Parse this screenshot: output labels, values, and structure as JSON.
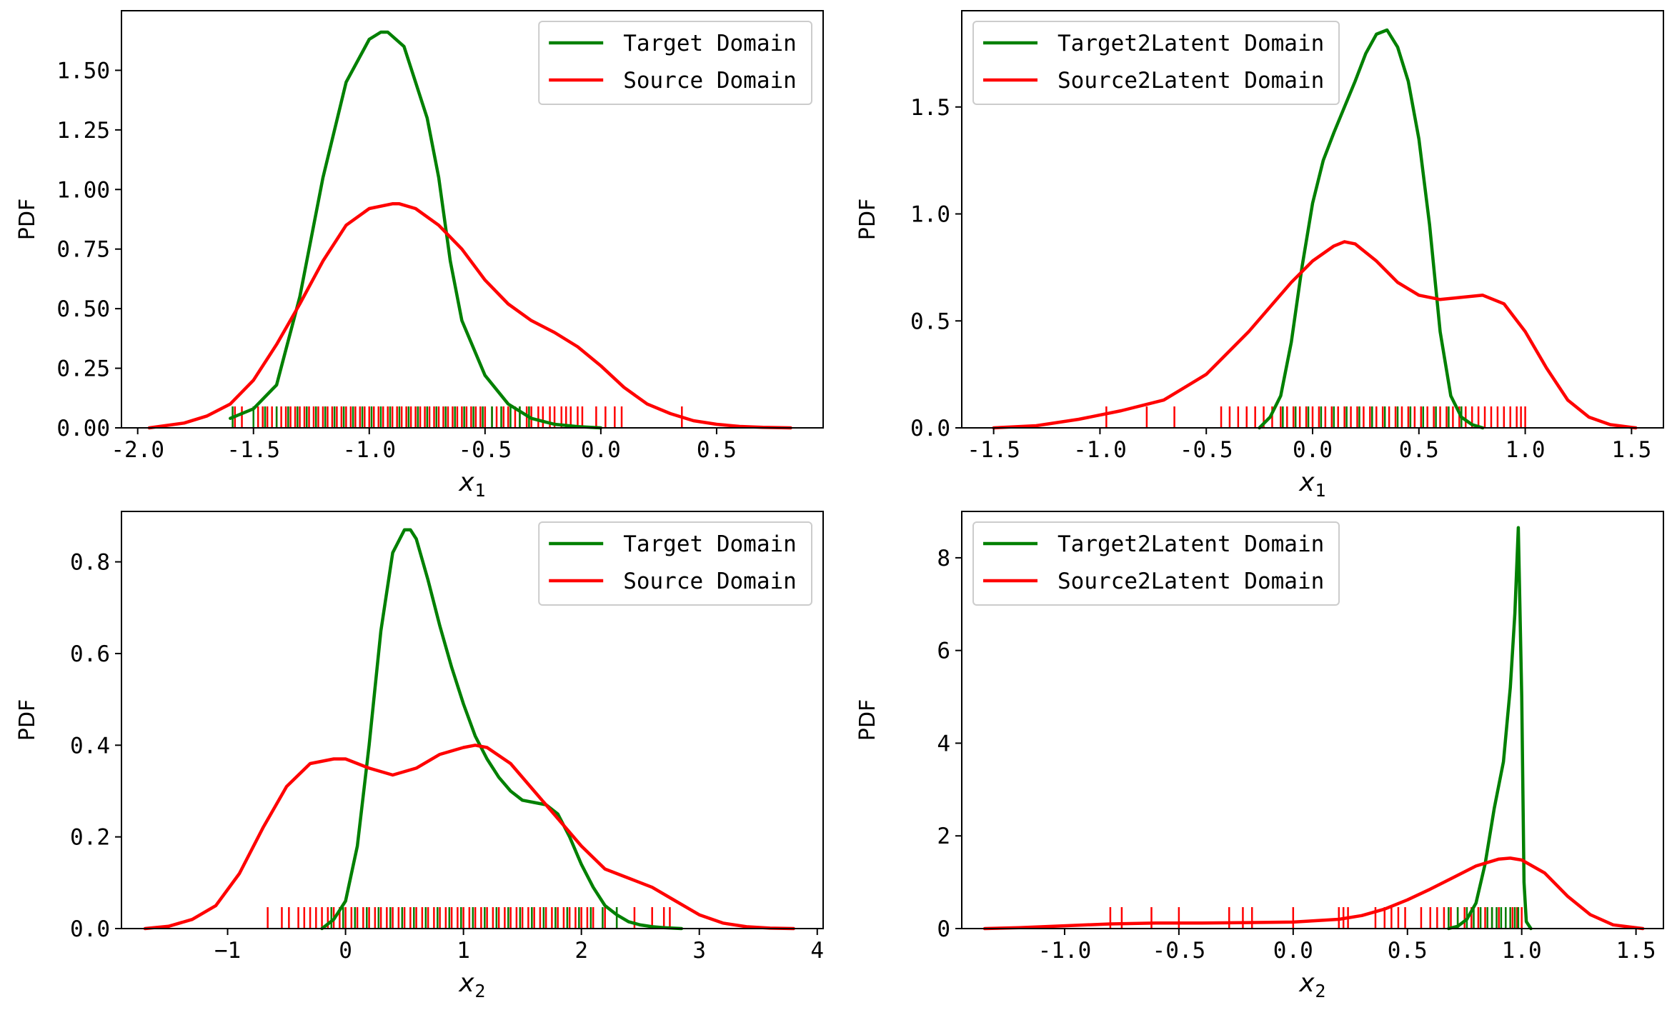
{
  "chart_data": [
    {
      "type": "line",
      "ylabel": "PDF",
      "xlabel": "x1",
      "xlabel_base": "x",
      "xlabel_sub": "1",
      "xlim": [
        -2.07,
        0.96
      ],
      "ylim": [
        0,
        1.75
      ],
      "xticks": [
        -2.0,
        -1.5,
        -1.0,
        -0.5,
        0.0,
        0.5
      ],
      "xtick_labels": [
        "-2.0",
        "-1.5",
        "-1.0",
        "-0.5",
        "0.0",
        "0.5"
      ],
      "yticks": [
        0,
        0.25,
        0.5,
        0.75,
        1.0,
        1.25,
        1.5
      ],
      "ytick_labels": [
        "0.00",
        "0.25",
        "0.50",
        "0.75",
        "1.00",
        "1.25",
        "1.50"
      ],
      "legend": {
        "location": "upper-right"
      },
      "series": [
        {
          "name": "Target Domain",
          "color": "#008000",
          "x": [
            -1.6,
            -1.5,
            -1.4,
            -1.3,
            -1.2,
            -1.1,
            -1.0,
            -0.95,
            -0.92,
            -0.85,
            -0.8,
            -0.75,
            -0.7,
            -0.65,
            -0.6,
            -0.5,
            -0.4,
            -0.3,
            -0.2,
            -0.1,
            0.0
          ],
          "y": [
            0.04,
            0.08,
            0.18,
            0.55,
            1.05,
            1.45,
            1.63,
            1.66,
            1.66,
            1.6,
            1.45,
            1.3,
            1.05,
            0.7,
            0.45,
            0.22,
            0.1,
            0.04,
            0.015,
            0.005,
            0.0
          ]
        },
        {
          "name": "Source Domain",
          "color": "#ff0000",
          "x": [
            -1.95,
            -1.8,
            -1.7,
            -1.6,
            -1.5,
            -1.4,
            -1.3,
            -1.2,
            -1.1,
            -1.0,
            -0.9,
            -0.87,
            -0.8,
            -0.7,
            -0.6,
            -0.5,
            -0.4,
            -0.3,
            -0.2,
            -0.1,
            0.0,
            0.1,
            0.2,
            0.3,
            0.4,
            0.5,
            0.6,
            0.7,
            0.82
          ],
          "y": [
            0.0,
            0.02,
            0.05,
            0.1,
            0.2,
            0.35,
            0.52,
            0.7,
            0.85,
            0.92,
            0.94,
            0.94,
            0.92,
            0.85,
            0.75,
            0.62,
            0.52,
            0.45,
            0.4,
            0.34,
            0.26,
            0.17,
            0.1,
            0.06,
            0.03,
            0.015,
            0.006,
            0.002,
            0.0
          ]
        }
      ],
      "rug": [
        {
          "series": "Source Domain",
          "color": "#ff0000",
          "values": [
            -1.58,
            -1.55,
            -1.48,
            -1.46,
            -1.44,
            -1.42,
            -1.4,
            -1.38,
            -1.36,
            -1.34,
            -1.32,
            -1.3,
            -1.28,
            -1.26,
            -1.24,
            -1.22,
            -1.2,
            -1.18,
            -1.16,
            -1.14,
            -1.12,
            -1.1,
            -1.08,
            -1.06,
            -1.04,
            -1.02,
            -1.0,
            -0.98,
            -0.96,
            -0.94,
            -0.92,
            -0.9,
            -0.88,
            -0.86,
            -0.84,
            -0.82,
            -0.8,
            -0.78,
            -0.76,
            -0.74,
            -0.72,
            -0.7,
            -0.68,
            -0.66,
            -0.64,
            -0.62,
            -0.6,
            -0.58,
            -0.56,
            -0.54,
            -0.52,
            -0.5,
            -0.47,
            -0.45,
            -0.42,
            -0.4,
            -0.37,
            -0.35,
            -0.32,
            -0.3,
            -0.27,
            -0.25,
            -0.22,
            -0.2,
            -0.17,
            -0.15,
            -0.13,
            -0.1,
            -0.08,
            -0.02,
            0.02,
            0.06,
            0.09,
            0.35
          ]
        },
        {
          "series": "Target Domain",
          "color": "#008000",
          "values": [
            -1.59,
            -1.5,
            -1.45,
            -1.4,
            -1.35,
            -1.31,
            -1.27,
            -1.23,
            -1.19,
            -1.15,
            -1.11,
            -1.07,
            -1.03,
            -0.99,
            -0.95,
            -0.91,
            -0.87,
            -0.83,
            -0.79,
            -0.75,
            -0.71,
            -0.67,
            -0.63,
            -0.59,
            -0.55,
            -0.51,
            -0.47,
            -0.43,
            -0.39,
            -0.35,
            -0.31
          ]
        }
      ]
    },
    {
      "type": "line",
      "ylabel": "PDF",
      "xlabel": "x1",
      "xlabel_base": "x",
      "xlabel_sub": "1",
      "xlim": [
        -1.65,
        1.65
      ],
      "ylim": [
        0,
        1.95
      ],
      "xticks": [
        -1.5,
        -1.0,
        -0.5,
        0.0,
        0.5,
        1.0,
        1.5
      ],
      "xtick_labels": [
        "-1.5",
        "-1.0",
        "-0.5",
        "0.0",
        "0.5",
        "1.0",
        "1.5"
      ],
      "yticks": [
        0,
        0.5,
        1.0,
        1.5
      ],
      "ytick_labels": [
        "0.0",
        "0.5",
        "1.0",
        "1.5"
      ],
      "legend": {
        "location": "upper-left"
      },
      "series": [
        {
          "name": "Target2Latent Domain",
          "color": "#008000",
          "x": [
            -0.25,
            -0.2,
            -0.15,
            -0.1,
            -0.05,
            0.0,
            0.05,
            0.1,
            0.15,
            0.2,
            0.25,
            0.3,
            0.35,
            0.4,
            0.45,
            0.5,
            0.55,
            0.6,
            0.65,
            0.7,
            0.75,
            0.8
          ],
          "y": [
            0.0,
            0.05,
            0.15,
            0.4,
            0.75,
            1.05,
            1.25,
            1.38,
            1.5,
            1.62,
            1.75,
            1.84,
            1.86,
            1.78,
            1.62,
            1.35,
            0.95,
            0.45,
            0.15,
            0.05,
            0.015,
            0.0
          ]
        },
        {
          "name": "Source2Latent Domain",
          "color": "#ff0000",
          "x": [
            -1.5,
            -1.3,
            -1.1,
            -0.9,
            -0.7,
            -0.5,
            -0.3,
            -0.1,
            0.0,
            0.1,
            0.15,
            0.2,
            0.3,
            0.4,
            0.5,
            0.6,
            0.7,
            0.8,
            0.9,
            1.0,
            1.1,
            1.2,
            1.3,
            1.4,
            1.52
          ],
          "y": [
            0.0,
            0.01,
            0.04,
            0.08,
            0.13,
            0.25,
            0.45,
            0.68,
            0.78,
            0.85,
            0.87,
            0.86,
            0.78,
            0.68,
            0.62,
            0.6,
            0.61,
            0.62,
            0.58,
            0.45,
            0.28,
            0.13,
            0.05,
            0.015,
            0.0
          ]
        }
      ],
      "rug": [
        {
          "series": "Source2Latent Domain",
          "color": "#ff0000",
          "values": [
            -0.97,
            -0.78,
            -0.65,
            -0.43,
            -0.39,
            -0.35,
            -0.31,
            -0.27,
            -0.23,
            -0.19,
            -0.15,
            -0.12,
            -0.09,
            -0.06,
            -0.03,
            0.0,
            0.03,
            0.06,
            0.09,
            0.12,
            0.15,
            0.18,
            0.21,
            0.24,
            0.27,
            0.3,
            0.33,
            0.36,
            0.39,
            0.42,
            0.45,
            0.48,
            0.51,
            0.54,
            0.57,
            0.6,
            0.63,
            0.66,
            0.69,
            0.72,
            0.75,
            0.78,
            0.81,
            0.84,
            0.87,
            0.9,
            0.93,
            0.96,
            0.98,
            1.0
          ]
        },
        {
          "series": "Target2Latent Domain",
          "color": "#008000",
          "values": [
            -0.14,
            -0.08,
            -0.02,
            0.04,
            0.1,
            0.16,
            0.22,
            0.28,
            0.34,
            0.4,
            0.46,
            0.52,
            0.58,
            0.64,
            0.7
          ]
        }
      ]
    },
    {
      "type": "line",
      "ylabel": "PDF",
      "xlabel": "x2",
      "xlabel_base": "x",
      "xlabel_sub": "2",
      "xlim": [
        -1.9,
        4.05
      ],
      "ylim": [
        0,
        0.91
      ],
      "xticks": [
        -1,
        0,
        1,
        2,
        3,
        4
      ],
      "xtick_labels": [
        "−1",
        "0",
        "1",
        "2",
        "3",
        "4"
      ],
      "yticks": [
        0,
        0.2,
        0.4,
        0.6,
        0.8
      ],
      "ytick_labels": [
        "0.0",
        "0.2",
        "0.4",
        "0.6",
        "0.8"
      ],
      "legend": {
        "location": "upper-right"
      },
      "series": [
        {
          "name": "Target Domain",
          "color": "#008000",
          "x": [
            -0.2,
            -0.1,
            0.0,
            0.1,
            0.2,
            0.3,
            0.4,
            0.5,
            0.55,
            0.6,
            0.7,
            0.8,
            0.9,
            1.0,
            1.1,
            1.2,
            1.3,
            1.4,
            1.5,
            1.6,
            1.7,
            1.8,
            1.9,
            2.0,
            2.1,
            2.2,
            2.3,
            2.4,
            2.5,
            2.6,
            2.7,
            2.85
          ],
          "y": [
            0.0,
            0.02,
            0.06,
            0.18,
            0.4,
            0.65,
            0.82,
            0.87,
            0.87,
            0.85,
            0.76,
            0.66,
            0.57,
            0.49,
            0.42,
            0.37,
            0.33,
            0.3,
            0.28,
            0.275,
            0.27,
            0.25,
            0.2,
            0.14,
            0.09,
            0.05,
            0.03,
            0.015,
            0.008,
            0.004,
            0.002,
            0.0
          ]
        },
        {
          "name": "Source Domain",
          "color": "#ff0000",
          "x": [
            -1.7,
            -1.5,
            -1.3,
            -1.1,
            -0.9,
            -0.7,
            -0.5,
            -0.3,
            -0.1,
            0.0,
            0.2,
            0.4,
            0.6,
            0.8,
            1.0,
            1.1,
            1.2,
            1.4,
            1.6,
            1.8,
            2.0,
            2.2,
            2.4,
            2.6,
            2.8,
            3.0,
            3.2,
            3.4,
            3.6,
            3.8
          ],
          "y": [
            0.0,
            0.005,
            0.02,
            0.05,
            0.12,
            0.22,
            0.31,
            0.36,
            0.37,
            0.37,
            0.35,
            0.335,
            0.35,
            0.38,
            0.395,
            0.4,
            0.395,
            0.36,
            0.3,
            0.24,
            0.18,
            0.13,
            0.11,
            0.09,
            0.06,
            0.03,
            0.012,
            0.004,
            0.001,
            0.0
          ]
        }
      ],
      "rug": [
        {
          "series": "Source Domain",
          "color": "#ff0000",
          "values": [
            -0.66,
            -0.54,
            -0.48,
            -0.4,
            -0.35,
            -0.3,
            -0.25,
            -0.2,
            -0.15,
            -0.1,
            -0.05,
            0.0,
            0.05,
            0.1,
            0.15,
            0.2,
            0.25,
            0.3,
            0.35,
            0.4,
            0.45,
            0.5,
            0.55,
            0.6,
            0.65,
            0.7,
            0.75,
            0.8,
            0.85,
            0.9,
            0.95,
            1.0,
            1.05,
            1.1,
            1.15,
            1.2,
            1.25,
            1.3,
            1.35,
            1.4,
            1.45,
            1.5,
            1.55,
            1.6,
            1.65,
            1.7,
            1.75,
            1.8,
            1.85,
            1.9,
            1.95,
            2.0,
            2.05,
            2.1,
            2.2,
            2.3,
            2.45,
            2.6,
            2.7,
            2.75
          ]
        },
        {
          "series": "Target Domain",
          "color": "#008000",
          "values": [
            -0.12,
            -0.02,
            0.08,
            0.18,
            0.28,
            0.38,
            0.48,
            0.58,
            0.68,
            0.78,
            0.88,
            0.98,
            1.08,
            1.18,
            1.28,
            1.38,
            1.48,
            1.58,
            1.68,
            1.78,
            1.88,
            1.98,
            2.08,
            2.18,
            2.3
          ]
        }
      ]
    },
    {
      "type": "line",
      "ylabel": "PDF",
      "xlabel": "x2",
      "xlabel_base": "x",
      "xlabel_sub": "2",
      "xlim": [
        -1.45,
        1.62
      ],
      "ylim": [
        0,
        9.0
      ],
      "xticks": [
        -1.0,
        -0.5,
        0.0,
        0.5,
        1.0,
        1.5
      ],
      "xtick_labels": [
        "-1.0",
        "-0.5",
        "0.0",
        "0.5",
        "1.0",
        "1.5"
      ],
      "yticks": [
        0,
        2,
        4,
        6,
        8
      ],
      "ytick_labels": [
        "0",
        "2",
        "4",
        "6",
        "8"
      ],
      "legend": {
        "location": "upper-left"
      },
      "series": [
        {
          "name": "Target2Latent Domain",
          "color": "#008000",
          "x": [
            0.68,
            0.72,
            0.76,
            0.8,
            0.84,
            0.88,
            0.92,
            0.95,
            0.97,
            0.985,
            1.0,
            1.01,
            1.02,
            1.04
          ],
          "y": [
            0.0,
            0.05,
            0.2,
            0.55,
            1.4,
            2.6,
            3.6,
            5.2,
            6.8,
            8.65,
            5.0,
            1.0,
            0.15,
            0.0
          ]
        },
        {
          "name": "Source2Latent Domain",
          "color": "#ff0000",
          "x": [
            -1.35,
            -1.2,
            -1.0,
            -0.8,
            -0.6,
            -0.4,
            -0.2,
            0.0,
            0.2,
            0.3,
            0.4,
            0.5,
            0.6,
            0.7,
            0.8,
            0.9,
            0.95,
            1.0,
            1.1,
            1.2,
            1.3,
            1.4,
            1.53
          ],
          "y": [
            0.0,
            0.02,
            0.06,
            0.1,
            0.12,
            0.12,
            0.13,
            0.14,
            0.2,
            0.28,
            0.42,
            0.62,
            0.85,
            1.1,
            1.35,
            1.5,
            1.52,
            1.48,
            1.2,
            0.7,
            0.3,
            0.08,
            0.0
          ]
        }
      ],
      "rug": [
        {
          "series": "Source2Latent Domain",
          "color": "#ff0000",
          "values": [
            -0.8,
            -0.75,
            -0.62,
            -0.5,
            -0.28,
            -0.22,
            -0.18,
            0.0,
            0.2,
            0.22,
            0.24,
            0.36,
            0.4,
            0.43,
            0.46,
            0.49,
            0.56,
            0.6,
            0.63,
            0.66,
            0.69,
            0.72,
            0.75,
            0.78,
            0.81,
            0.84,
            0.87,
            0.9,
            0.93,
            0.96,
            0.98,
            1.0
          ]
        },
        {
          "series": "Target2Latent Domain",
          "color": "#008000",
          "values": [
            0.68,
            0.72,
            0.76,
            0.79,
            0.82,
            0.85,
            0.87,
            0.89,
            0.91,
            0.93,
            0.95,
            0.97,
            0.985
          ]
        }
      ]
    }
  ]
}
